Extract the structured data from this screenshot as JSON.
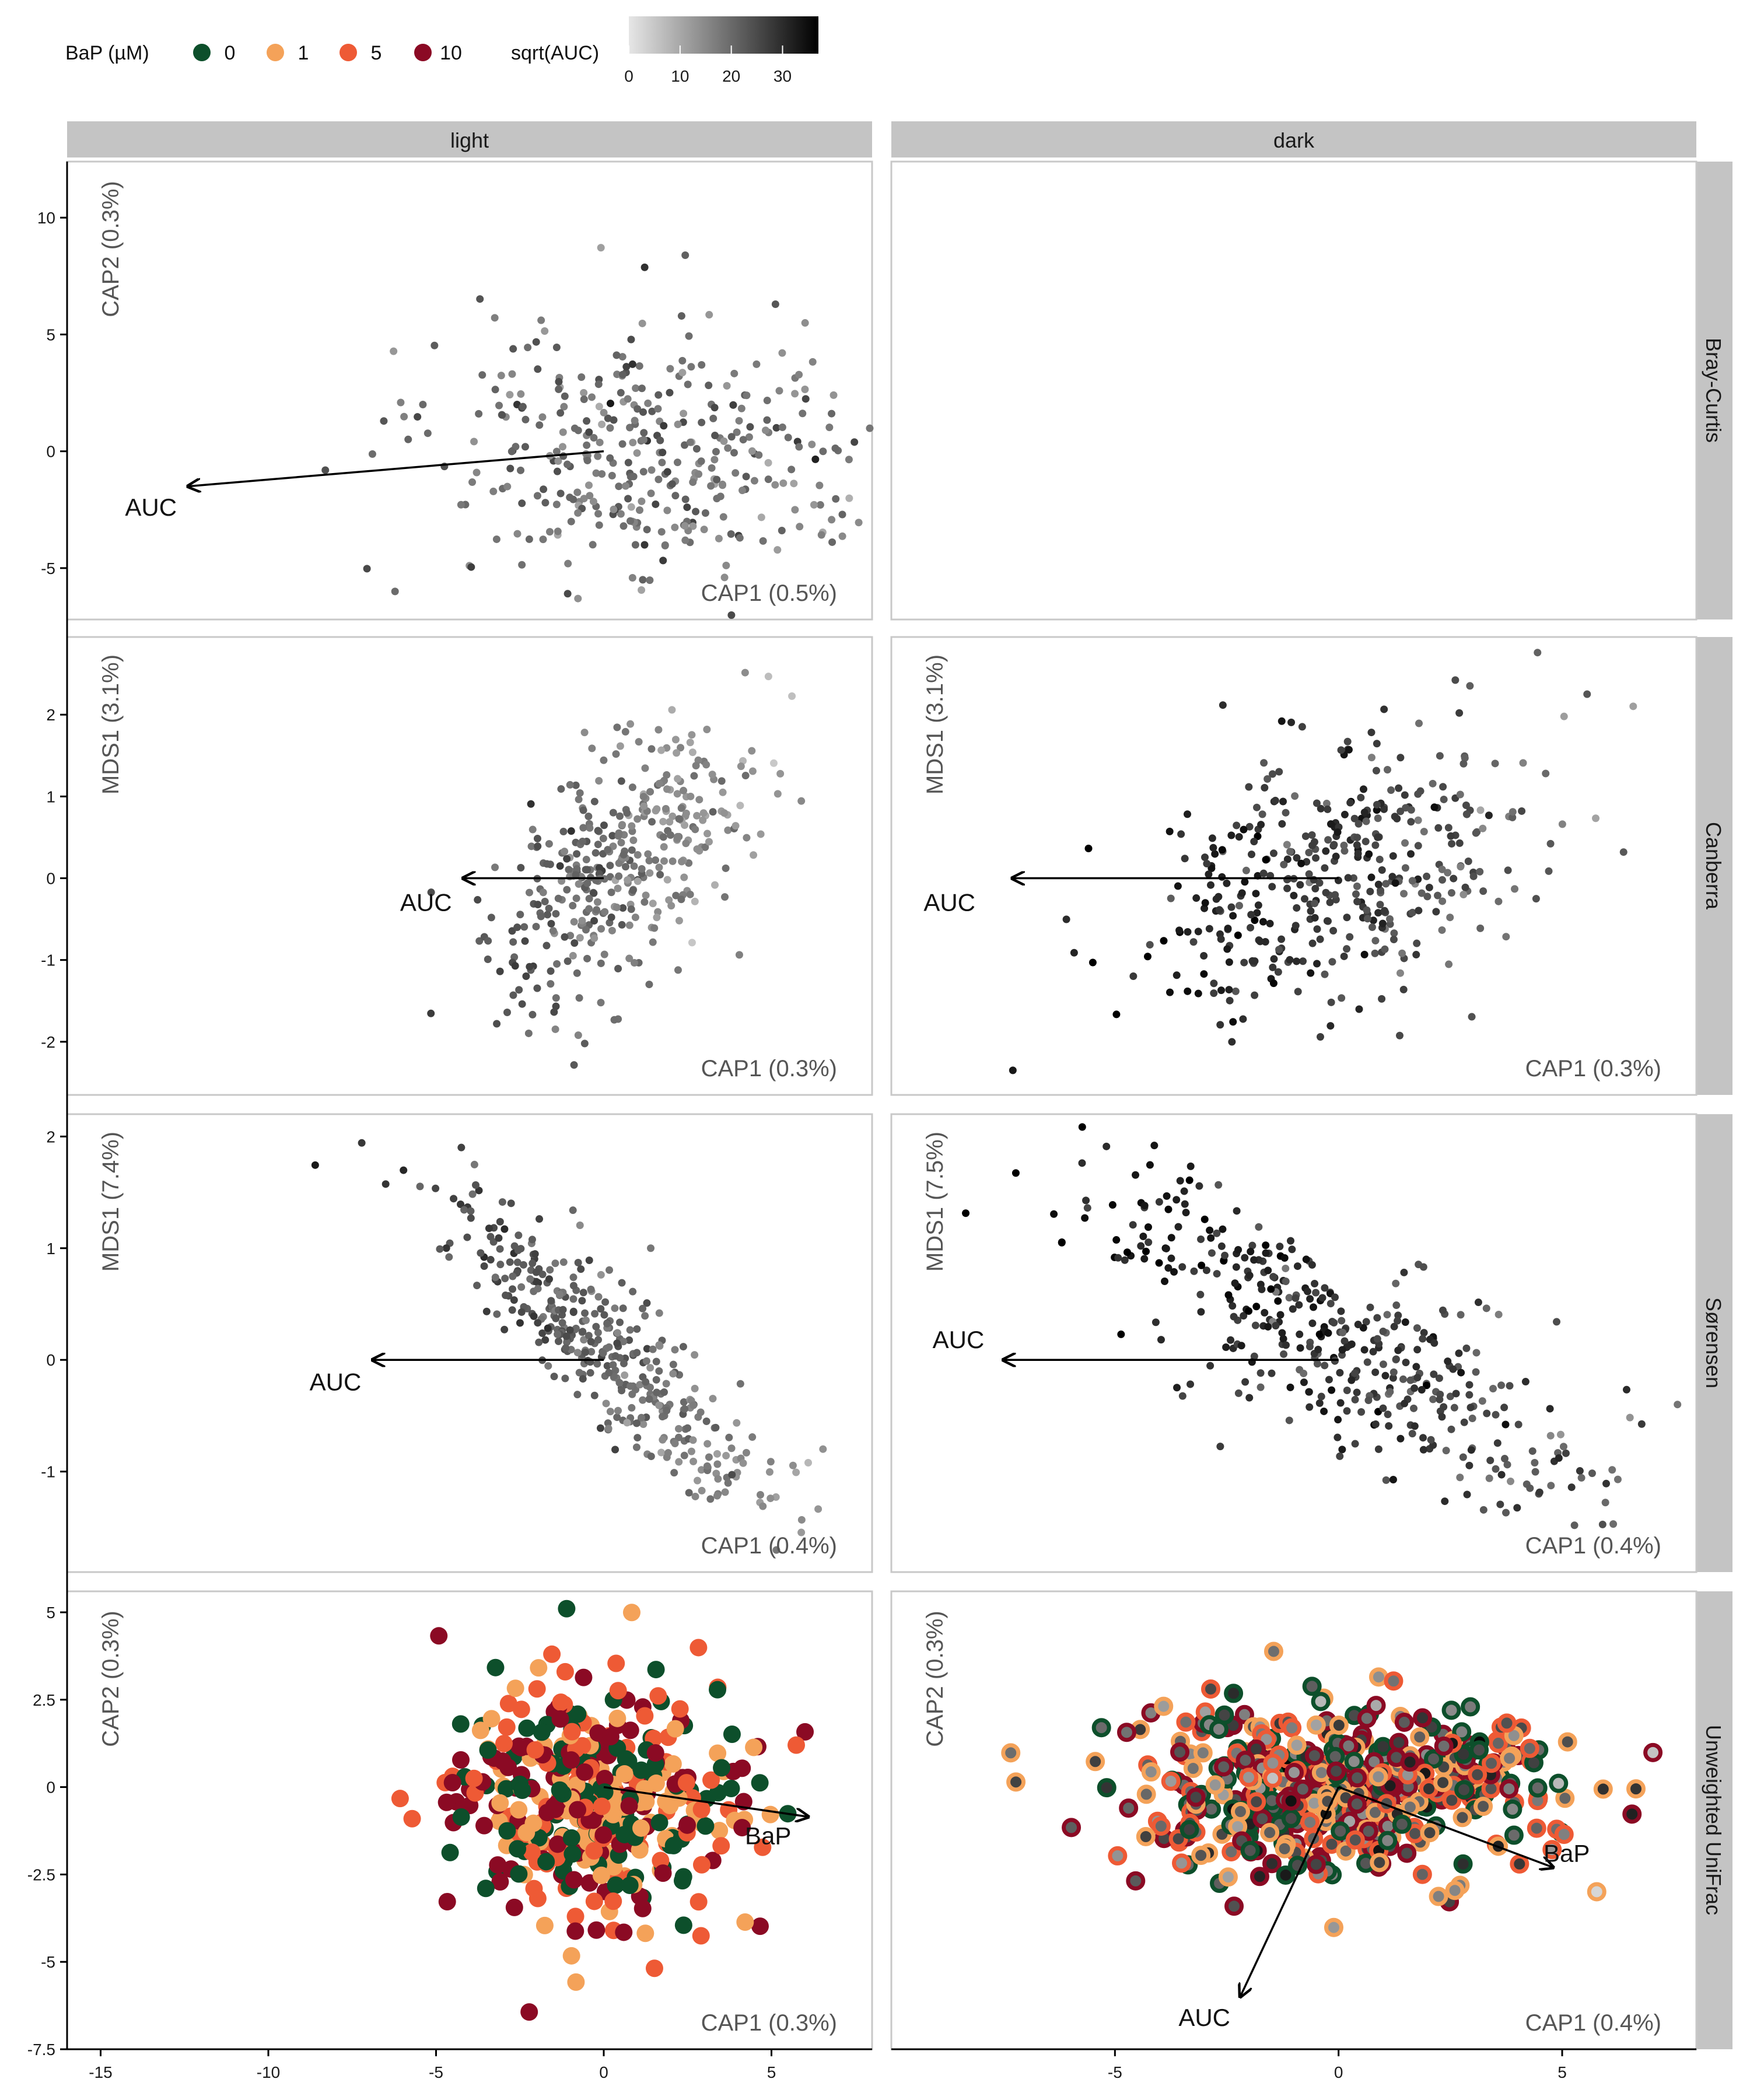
{
  "legend": {
    "bap_title": "BaP (µM)",
    "bap_levels": [
      {
        "label": "0",
        "color": "#0d4f2b"
      },
      {
        "label": "1",
        "color": "#f4a259"
      },
      {
        "label": "5",
        "color": "#ee5a35"
      },
      {
        "label": "10",
        "color": "#8b0a24"
      }
    ],
    "auc_title": "sqrt(AUC)",
    "auc_ticks": [
      "0",
      "10",
      "20",
      "30"
    ],
    "auc_range": [
      0,
      37
    ],
    "auc_gradient": [
      "#e6e6e6",
      "#000000"
    ]
  },
  "facets": {
    "columns": [
      "light",
      "dark"
    ],
    "rows": [
      "Bray-Curtis",
      "Canberra",
      "Sørensen",
      "Unweighted UniFrac"
    ]
  },
  "chart_data": [
    {
      "type": "scatter",
      "row": "Bray-Curtis",
      "col": "light",
      "xlabel": "CAP1 (0.5%)",
      "ylabel": "CAP2 (0.3%)",
      "xlim": [
        -16,
        8
      ],
      "ylim": [
        -7.2,
        12.4
      ],
      "yticks": [
        -5,
        0,
        5,
        10
      ],
      "cloud": {
        "cx": 1.2,
        "cy": -0.2,
        "sx": 3.2,
        "sy": 2.8,
        "n": 380,
        "rho": -0.1,
        "grad": -0.15,
        "auc_mean": 19,
        "auc_sd": 4,
        "seed": 11
      },
      "vectors": [
        {
          "label": "AUC",
          "x": -12.4,
          "y": -1.5,
          "label_x": -13.5,
          "label_y": -2.4
        }
      ]
    },
    {
      "type": "scatter",
      "row": "Bray-Curtis",
      "col": "dark",
      "xlabel": "",
      "ylabel": "",
      "xlim": [
        -10,
        8
      ],
      "ylim": [
        -7.2,
        12.4
      ],
      "cloud": null,
      "vectors": []
    },
    {
      "type": "scatter",
      "row": "Canberra",
      "col": "light",
      "xlabel": "CAP1 (0.3%)",
      "ylabel": "MDS1 (3.1%)",
      "xlim": [
        -16,
        8
      ],
      "ylim": [
        -2.65,
        2.95
      ],
      "yticks": [
        -2,
        -1,
        0,
        1,
        2
      ],
      "cloud": {
        "cx": 0.3,
        "cy": 0.1,
        "sx": 1.9,
        "sy": 0.85,
        "n": 390,
        "rho": 0.6,
        "grad": -0.9,
        "auc_mean": 18,
        "auc_sd": 3,
        "seed": 23
      },
      "vectors": [
        {
          "label": "AUC",
          "x": -4.2,
          "y": 0,
          "label_x": -5.3,
          "label_y": -0.3
        }
      ]
    },
    {
      "type": "scatter",
      "row": "Canberra",
      "col": "dark",
      "xlabel": "CAP1 (0.3%)",
      "ylabel": "MDS1 (3.1%)",
      "xlim": [
        -10,
        8
      ],
      "ylim": [
        -2.65,
        2.95
      ],
      "cloud": {
        "cx": 0.0,
        "cy": 0.1,
        "sx": 2.2,
        "sy": 0.9,
        "n": 420,
        "rho": 0.45,
        "grad": -0.9,
        "auc_mean": 27,
        "auc_sd": 4,
        "seed": 37
      },
      "vectors": [
        {
          "label": "AUC",
          "x": -7.3,
          "y": 0,
          "label_x": -8.7,
          "label_y": -0.3
        }
      ]
    },
    {
      "type": "scatter",
      "row": "Sørensen",
      "col": "light",
      "xlabel": "CAP1 (0.4%)",
      "ylabel": "MDS1 (7.4%)",
      "xlim": [
        -16,
        8
      ],
      "ylim": [
        -1.9,
        2.2
      ],
      "yticks": [
        -1,
        0,
        1,
        2
      ],
      "cloud": {
        "cx": 0.2,
        "cy": 0.05,
        "sx": 2.4,
        "sy": 0.7,
        "n": 400,
        "rho": -0.88,
        "grad": -0.9,
        "auc_mean": 20,
        "auc_sd": 3,
        "seed": 41
      },
      "vectors": [
        {
          "label": "AUC",
          "x": -6.9,
          "y": 0,
          "label_x": -8.0,
          "label_y": -0.2
        }
      ]
    },
    {
      "type": "scatter",
      "row": "Sørensen",
      "col": "dark",
      "xlabel": "CAP1 (0.4%)",
      "ylabel": "MDS1 (7.5%)",
      "xlim": [
        -10,
        8
      ],
      "ylim": [
        -1.9,
        2.2
      ],
      "cloud": {
        "cx": 0.3,
        "cy": 0.1,
        "sx": 2.8,
        "sy": 0.72,
        "n": 420,
        "rho": -0.8,
        "grad": -0.9,
        "auc_mean": 28,
        "auc_sd": 4,
        "seed": 53
      },
      "vectors": [
        {
          "label": "AUC",
          "x": -7.5,
          "y": 0,
          "label_x": -8.5,
          "label_y": 0.18
        }
      ]
    },
    {
      "type": "scatter",
      "row": "Unweighted UniFrac",
      "col": "light",
      "xlabel": "CAP1 (0.3%)",
      "ylabel": "CAP2 (0.3%)",
      "xlim": [
        -16,
        8
      ],
      "ylim": [
        -7.5,
        5.6
      ],
      "yticks": [
        -7.5,
        -5.0,
        -2.5,
        0.0,
        2.5,
        5.0
      ],
      "xticks": [
        -15,
        -10,
        -5,
        0,
        5
      ],
      "cloud": {
        "cx": -0.2,
        "cy": -0.4,
        "sx": 2.1,
        "sy": 1.65,
        "n": 430,
        "rho": 0.0,
        "grad": 0,
        "auc_mean": 0,
        "auc_sd": 0,
        "seed": 67
      },
      "fill_by_bap": true,
      "outline": false,
      "vectors": [
        {
          "label": "BaP",
          "x": 6.1,
          "y": -0.85,
          "label_x": 4.9,
          "label_y": -1.4
        }
      ]
    },
    {
      "type": "scatter",
      "row": "Unweighted UniFrac",
      "col": "dark",
      "xlabel": "CAP1 (0.4%)",
      "ylabel": "CAP2 (0.3%)",
      "xlim": [
        -10,
        8
      ],
      "ylim": [
        -7.5,
        5.6
      ],
      "xticks": [
        -5,
        0,
        5
      ],
      "cloud": {
        "cx": 0.0,
        "cy": 0.0,
        "sx": 2.5,
        "sy": 1.3,
        "n": 470,
        "rho": 0.0,
        "grad": 0,
        "auc_mean": 22,
        "auc_sd": 6,
        "seed": 79
      },
      "fill_by_bap": false,
      "outline": true,
      "vectors": [
        {
          "label": "BaP",
          "x": 4.8,
          "y": -2.3,
          "label_x": 5.1,
          "label_y": -1.9
        },
        {
          "label": "AUC",
          "x": -2.2,
          "y": -6.0,
          "label_x": -3.0,
          "label_y": -6.6
        }
      ]
    }
  ]
}
